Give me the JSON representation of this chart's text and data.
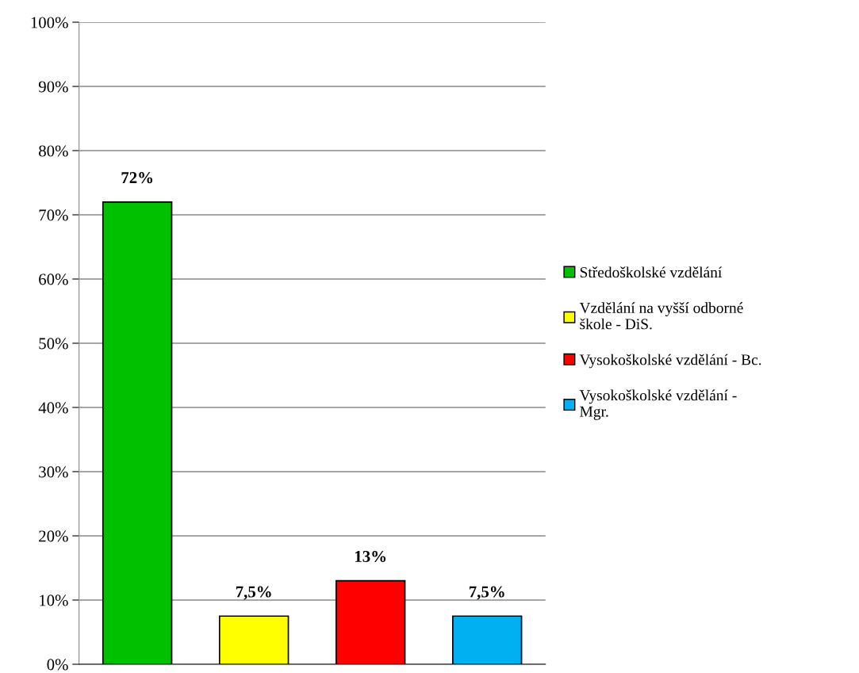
{
  "chart_data": {
    "type": "bar",
    "categories": [
      null,
      null,
      null,
      null
    ],
    "series": [
      {
        "name": "Středoškolské vzdělání",
        "color": "#00c000",
        "values": [
          72,
          null,
          null,
          null
        ],
        "value_labels": [
          "72%",
          null,
          null,
          null
        ]
      },
      {
        "name": "Vzdělání na vyšší odborné\nškole - DiS.",
        "color": "#ffff00",
        "values": [
          null,
          7.5,
          null,
          null
        ],
        "value_labels": [
          null,
          "7,5%",
          null,
          null
        ]
      },
      {
        "name": "Vysokoškolské vzdělání - Bc.",
        "color": "#ff0000",
        "values": [
          null,
          null,
          13,
          null
        ],
        "value_labels": [
          null,
          null,
          "13%",
          null
        ]
      },
      {
        "name": "Vysokoškolské vzdělání -\nMgr.",
        "color": "#00b0f0",
        "values": [
          null,
          null,
          null,
          7.5
        ],
        "value_labels": [
          null,
          null,
          null,
          "7,5%"
        ]
      }
    ],
    "ylim": [
      0,
      100
    ],
    "yticks": [
      {
        "value": 0,
        "label": "0%"
      },
      {
        "value": 10,
        "label": "10%"
      },
      {
        "value": 20,
        "label": "20%"
      },
      {
        "value": 30,
        "label": "30%"
      },
      {
        "value": 40,
        "label": "40%"
      },
      {
        "value": 50,
        "label": "50%"
      },
      {
        "value": 60,
        "label": "60%"
      },
      {
        "value": 70,
        "label": "70%"
      },
      {
        "value": 80,
        "label": "80%"
      },
      {
        "value": 90,
        "label": "90%"
      },
      {
        "value": 100,
        "label": "100%"
      }
    ],
    "grid": "y",
    "legend": "right"
  }
}
